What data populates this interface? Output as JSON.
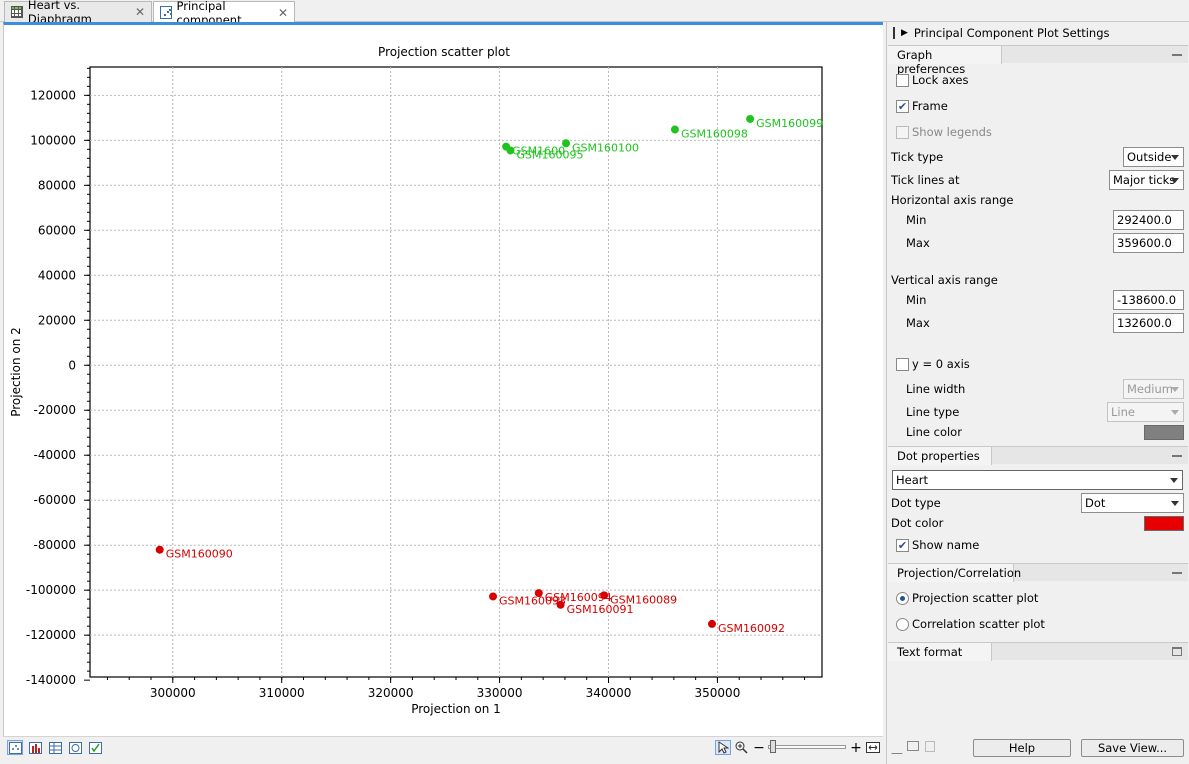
{
  "tabs": [
    {
      "label": "Heart vs. Diaphragm",
      "icon": "table-icon"
    },
    {
      "label": "Principal component",
      "icon": "scatter-plot-icon"
    }
  ],
  "chart_data": {
    "type": "scatter",
    "title": "Projection scatter plot",
    "xlabel": "Projection on 1",
    "ylabel": "Projection on 2",
    "xlim": [
      292400,
      359600
    ],
    "ylim": [
      -138600,
      132600
    ],
    "x_ticks": [
      300000,
      310000,
      320000,
      330000,
      340000,
      350000
    ],
    "y_ticks": [
      120000,
      100000,
      80000,
      60000,
      40000,
      20000,
      0,
      -20000,
      -40000,
      -60000,
      -80000,
      -100000,
      -120000,
      -140000
    ],
    "grid": true,
    "series": [
      {
        "color": "#1ec31e",
        "points": [
          {
            "label": "GSM160099",
            "x": 353000,
            "y": 109500
          },
          {
            "label": "GSM160098",
            "x": 346100,
            "y": 104800
          },
          {
            "label": "GSM160100",
            "x": 336100,
            "y": 98700
          },
          {
            "label": "GSM1600",
            "x": 330600,
            "y": 97200
          },
          {
            "label": "GSM160095",
            "x": 331000,
            "y": 95500
          }
        ]
      },
      {
        "color": "#d60000",
        "points": [
          {
            "label": "GSM160090",
            "x": 298800,
            "y": -82000
          },
          {
            "label": "GSM160093",
            "x": 329400,
            "y": -102800
          },
          {
            "label": "GSM160094",
            "x": 333600,
            "y": -101300
          },
          {
            "label": "GSM160091",
            "x": 335600,
            "y": -106500
          },
          {
            "label": "GSM160089",
            "x": 339600,
            "y": -102300
          },
          {
            "label": "GSM160092",
            "x": 349500,
            "y": -115000
          }
        ]
      }
    ]
  },
  "side": {
    "title": "Principal Component Plot Settings",
    "graph_prefs": {
      "section_label": "Graph preferences",
      "lock_axes": "Lock axes",
      "frame": "Frame",
      "show_legends": "Show legends",
      "tick_type_label": "Tick type",
      "tick_type_value": "Outside",
      "tick_lines_label": "Tick lines at",
      "tick_lines_value": "Major ticks",
      "h_range_label": "Horizontal axis range",
      "min_label": "Min",
      "max_label": "Max",
      "h_min": "292400.0",
      "h_max": "359600.0",
      "v_range_label": "Vertical axis range",
      "v_min": "-138600.0",
      "v_max": "132600.0",
      "y0_axis": "y = 0 axis",
      "line_width_label": "Line width",
      "line_width_value": "Medium",
      "line_type_label": "Line type",
      "line_type_value": "Line",
      "line_color_label": "Line color",
      "line_color": "#808080"
    },
    "dot_props": {
      "section_label": "Dot properties",
      "group_value": "Heart",
      "dot_type_label": "Dot type",
      "dot_type_value": "Dot",
      "dot_color_label": "Dot color",
      "dot_color": "#e60000",
      "show_name": "Show name"
    },
    "projection": {
      "section_label": "Projection/Correlation",
      "opt1": "Projection scatter plot",
      "opt2": "Correlation scatter plot"
    },
    "text_format": {
      "section_label": "Text format"
    },
    "help_label": "Help",
    "save_label": "Save View..."
  }
}
